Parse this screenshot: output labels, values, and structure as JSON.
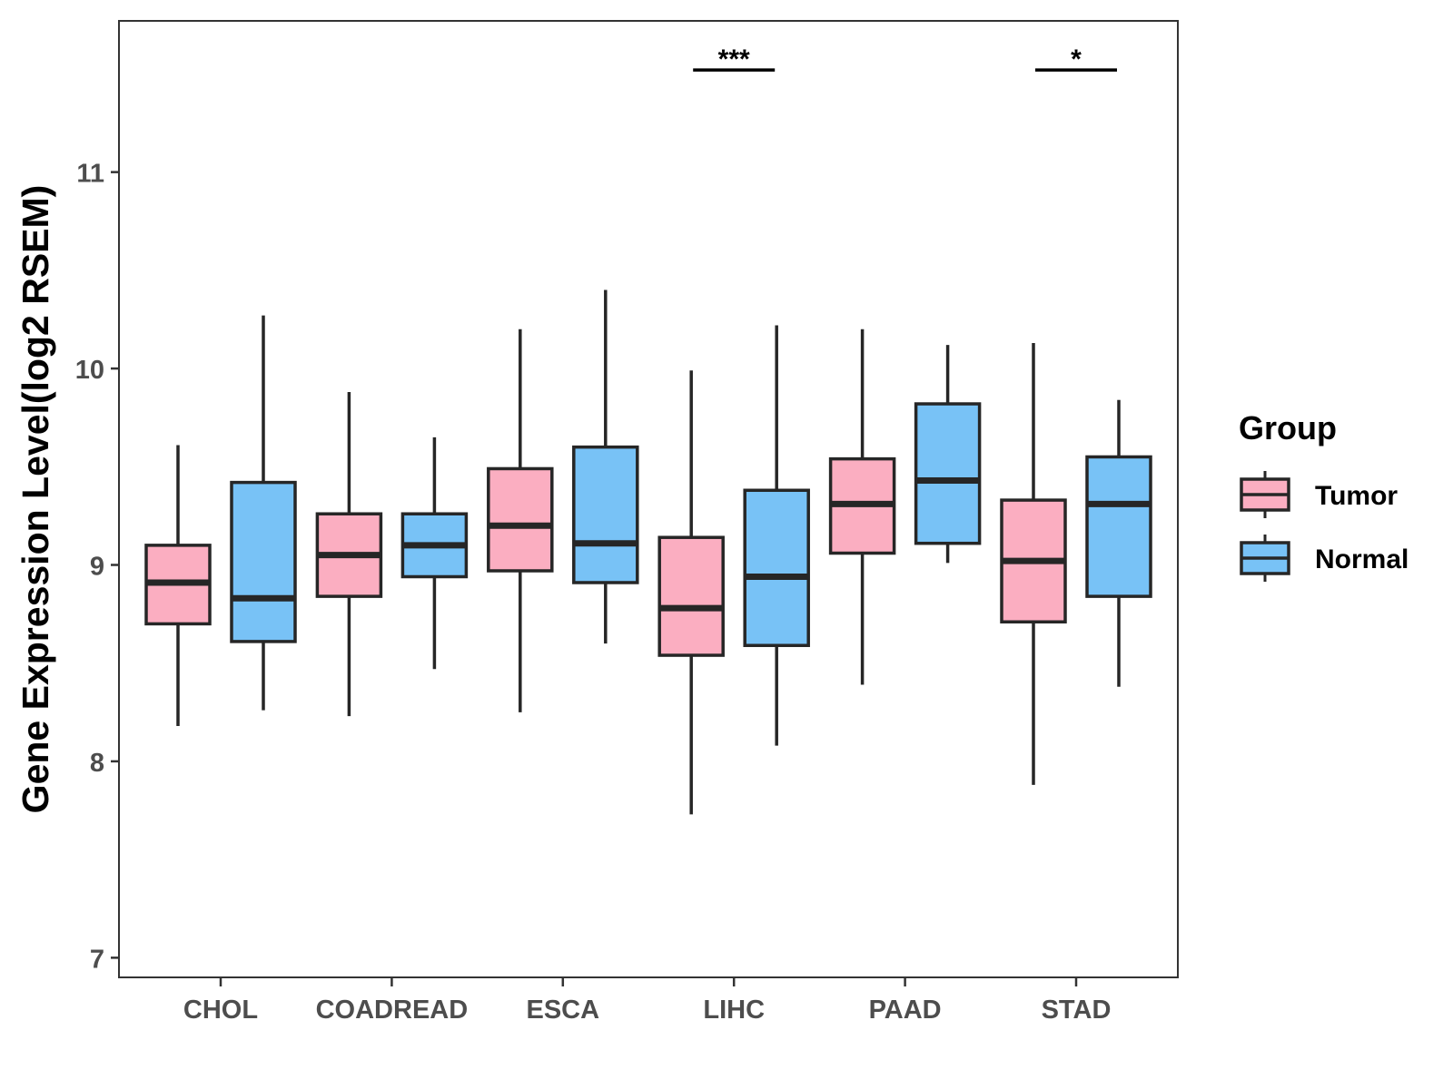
{
  "chart_data": {
    "type": "boxplot",
    "title": "",
    "xlabel": "",
    "ylabel": "Gene Expression Level(log2 RSEM)",
    "ylim": [
      6.9,
      11.77
    ],
    "yticks": [
      7,
      8,
      9,
      10,
      11
    ],
    "categories": [
      "CHOL",
      "COADREAD",
      "ESCA",
      "LIHC",
      "PAAD",
      "STAD"
    ],
    "series": [
      {
        "name": "Tumor",
        "color": "#FBAEC1",
        "boxes": [
          {
            "min": 8.18,
            "q1": 8.7,
            "median": 8.91,
            "q3": 9.1,
            "max": 9.61
          },
          {
            "min": 8.23,
            "q1": 8.84,
            "median": 9.05,
            "q3": 9.26,
            "max": 9.88
          },
          {
            "min": 8.25,
            "q1": 8.97,
            "median": 9.2,
            "q3": 9.49,
            "max": 10.2
          },
          {
            "min": 7.73,
            "q1": 8.54,
            "median": 8.78,
            "q3": 9.14,
            "max": 9.99
          },
          {
            "min": 8.39,
            "q1": 9.06,
            "median": 9.31,
            "q3": 9.54,
            "max": 10.2
          },
          {
            "min": 7.88,
            "q1": 8.71,
            "median": 9.02,
            "q3": 9.33,
            "max": 10.13
          }
        ]
      },
      {
        "name": "Normal",
        "color": "#78C2F6",
        "boxes": [
          {
            "min": 8.26,
            "q1": 8.61,
            "median": 8.83,
            "q3": 9.42,
            "max": 10.27
          },
          {
            "min": 8.47,
            "q1": 8.94,
            "median": 9.1,
            "q3": 9.26,
            "max": 9.65
          },
          {
            "min": 8.6,
            "q1": 8.91,
            "median": 9.11,
            "q3": 9.6,
            "max": 10.4
          },
          {
            "min": 8.08,
            "q1": 8.59,
            "median": 8.94,
            "q3": 9.38,
            "max": 10.22
          },
          {
            "min": 9.01,
            "q1": 9.11,
            "median": 9.43,
            "q3": 9.82,
            "max": 10.12
          },
          {
            "min": 8.38,
            "q1": 8.84,
            "median": 9.31,
            "q3": 9.55,
            "max": 9.84
          }
        ]
      }
    ],
    "significance": [
      {
        "category": "LIHC",
        "label": "***",
        "y": 11.52
      },
      {
        "category": "STAD",
        "label": "*",
        "y": 11.52
      }
    ],
    "legend": {
      "title": "Group",
      "position": "right",
      "entries": [
        "Tumor",
        "Normal"
      ]
    },
    "grid": false
  }
}
